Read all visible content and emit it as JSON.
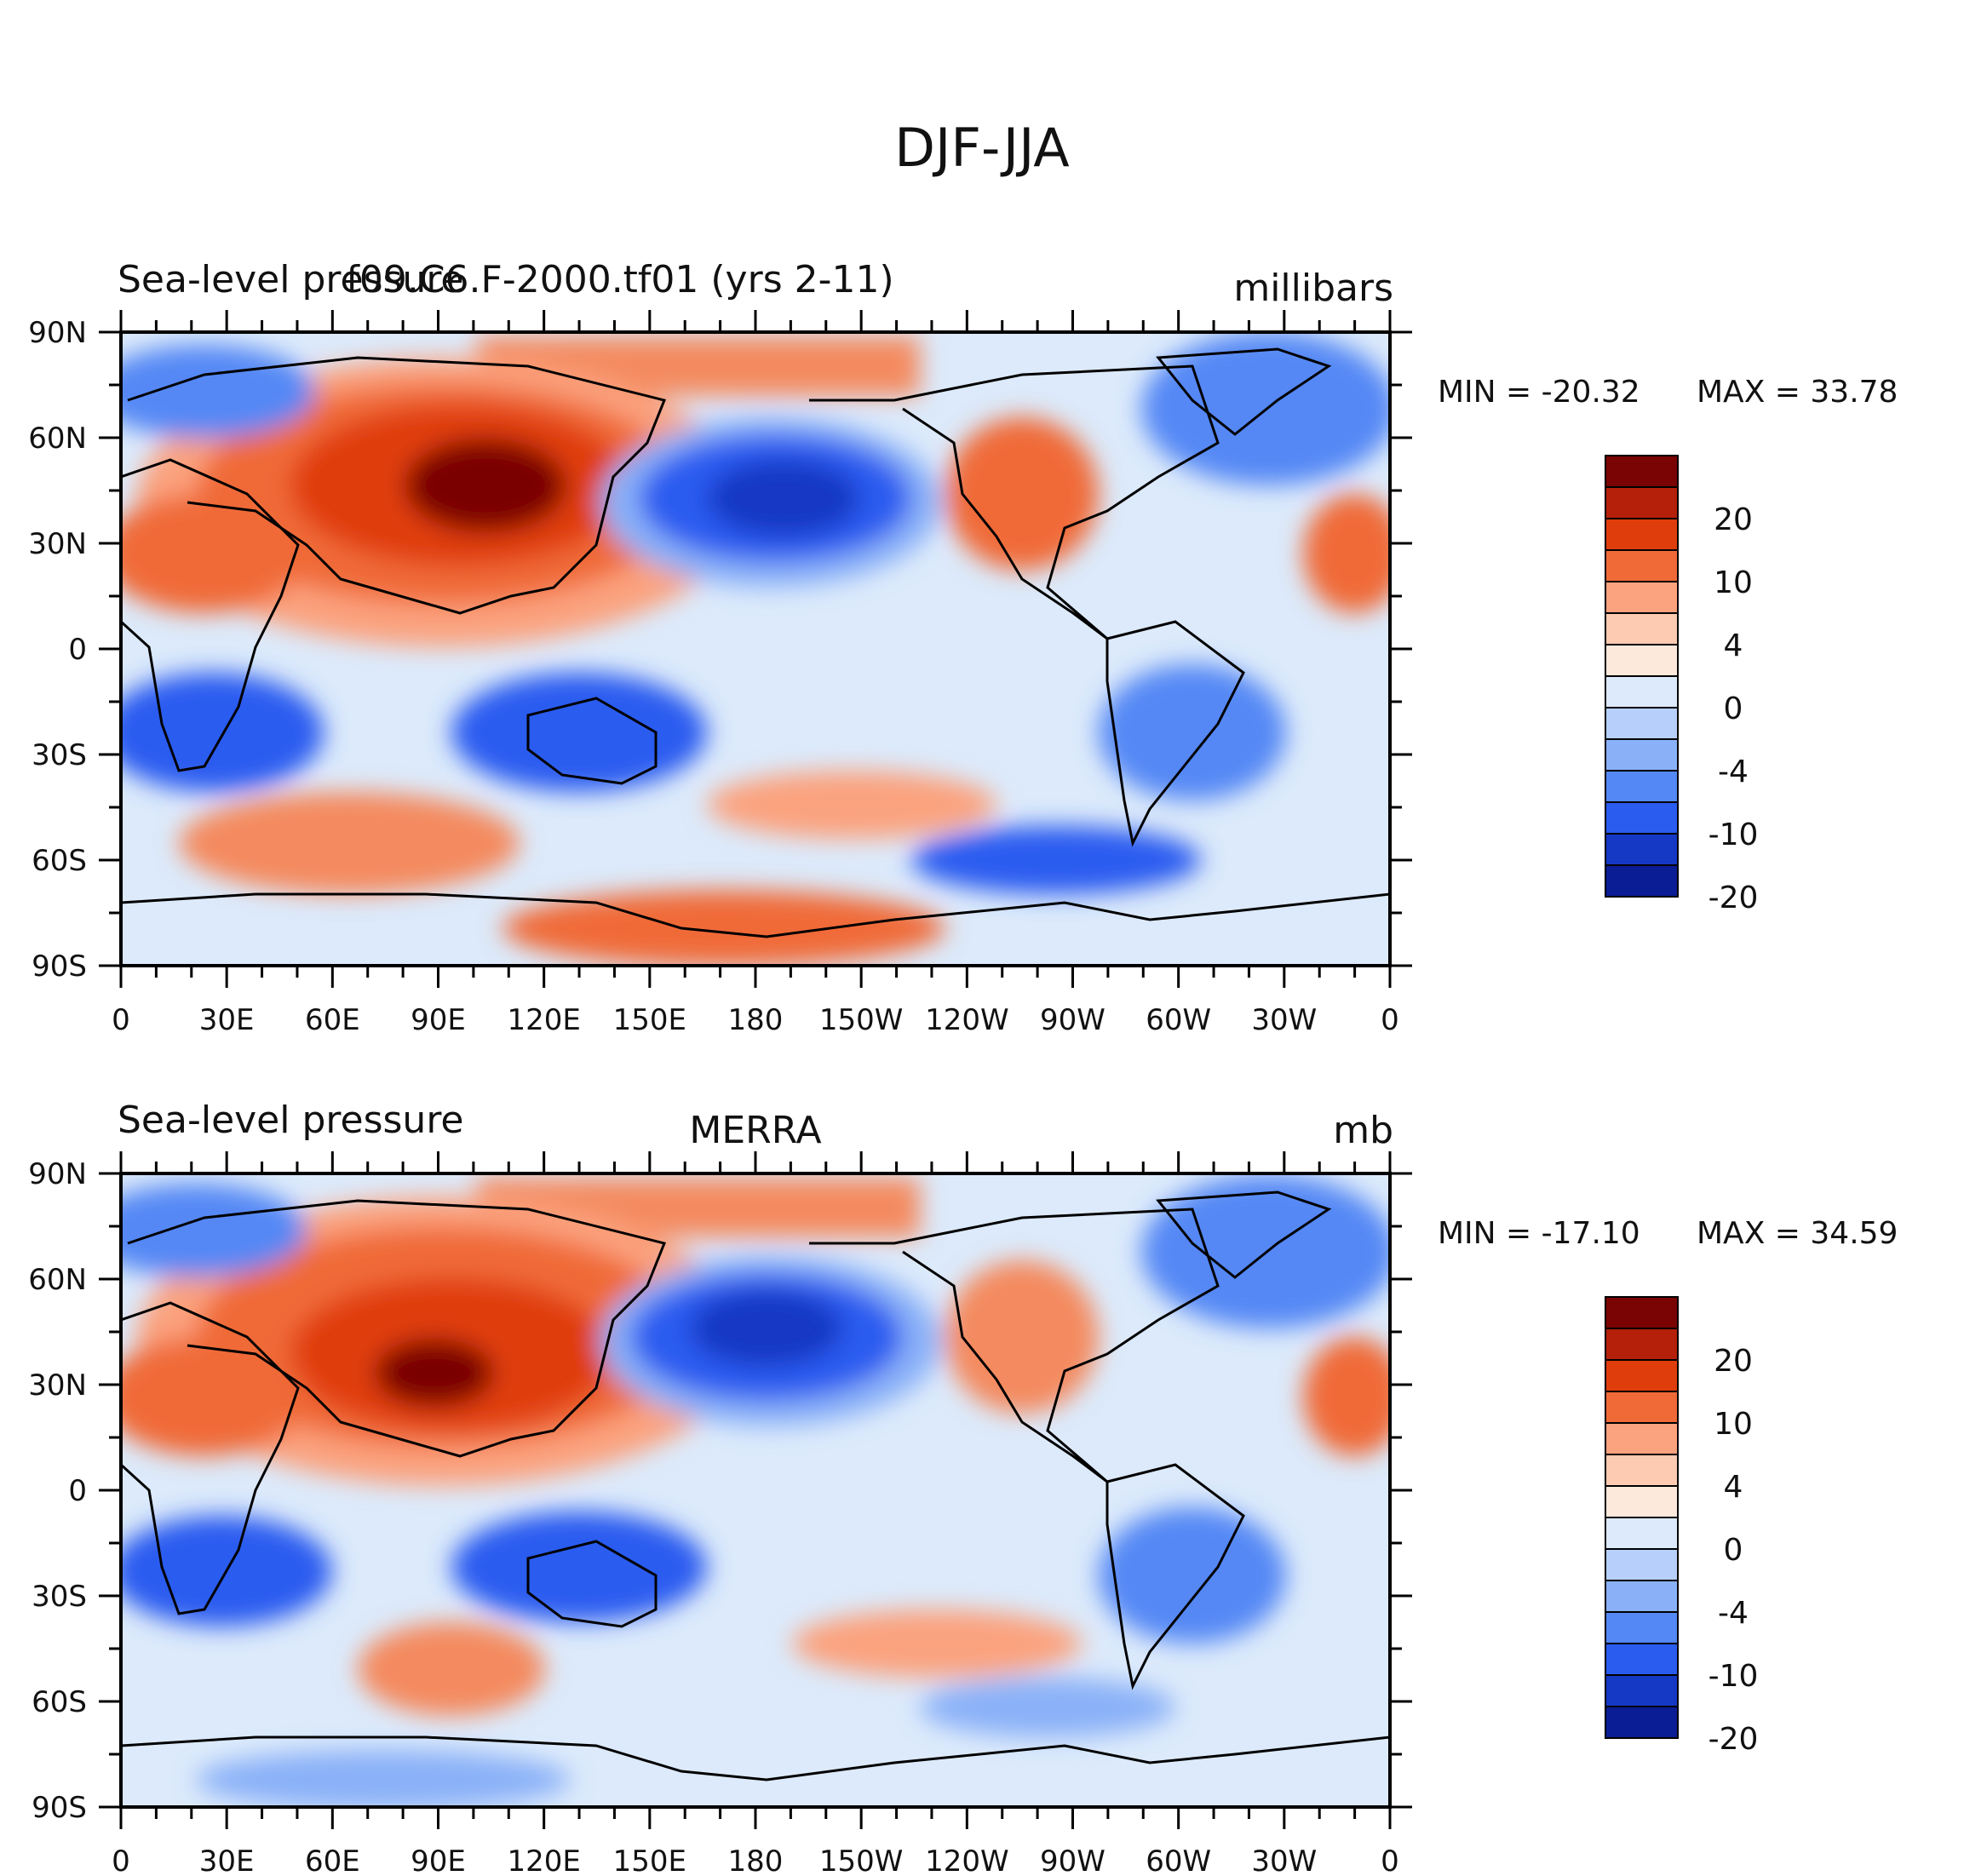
{
  "figure": {
    "title": "DJF-JJA"
  },
  "panels": [
    {
      "left_title": "Sea-level pressure",
      "center_title": "f09.C6.F-2000.tf01 (yrs 2-11)",
      "units": "millibars",
      "min_label": "MIN = -20.32",
      "max_label": "MAX =  33.78"
    },
    {
      "left_title": "Sea-level pressure",
      "center_title": "MERRA",
      "units": "mb",
      "min_label": "MIN = -17.10",
      "max_label": "MAX =  34.59"
    }
  ],
  "axes": {
    "lat_ticks": [
      "90N",
      "60N",
      "30N",
      "0",
      "30S",
      "60S",
      "90S"
    ],
    "lon_ticks": [
      "0",
      "30E",
      "60E",
      "90E",
      "120E",
      "150E",
      "180",
      "150W",
      "120W",
      "90W",
      "60W",
      "30W",
      "0"
    ]
  },
  "colorbar": {
    "labels": [
      "20",
      "10",
      "4",
      "0",
      "-4",
      "-10",
      "-20"
    ],
    "colors": [
      "#7a0403",
      "#b4200a",
      "#e03d0c",
      "#f06a37",
      "#fba27e",
      "#fdcbb1",
      "#fde9dc",
      "#dceafb",
      "#b6d0fb",
      "#8ab1f8",
      "#5488f5",
      "#2a5cf0",
      "#1539c4",
      "#0a1d94"
    ]
  },
  "chart_data": {
    "type": "contour-map",
    "title": "DJF-JJA",
    "variable": "Sea-level pressure",
    "projection": "cylindrical equidistant, centered on 180",
    "lon_range": [
      0,
      360
    ],
    "lat_range": [
      -90,
      90
    ],
    "contour_levels": [
      -20,
      -15,
      -10,
      -8,
      -6,
      -4,
      -2,
      0,
      2,
      4,
      6,
      8,
      10,
      15,
      20
    ],
    "colorbar_labels": [
      20,
      10,
      4,
      0,
      -4,
      -10,
      -20
    ],
    "panels": [
      {
        "name": "f09.C6.F-2000.tf01 (yrs 2-11)",
        "units": "millibars",
        "min": -20.32,
        "max": 33.78
      },
      {
        "name": "MERRA",
        "units": "mb",
        "min": -17.1,
        "max": 34.59
      }
    ]
  }
}
